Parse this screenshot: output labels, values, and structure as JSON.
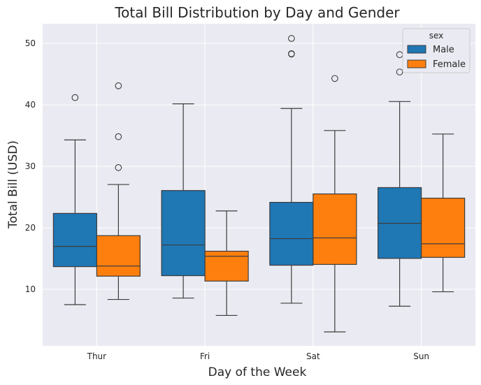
{
  "chart_data": {
    "type": "boxplot",
    "title": "Total Bill Distribution by Day and Gender",
    "xlabel": "Day of the Week",
    "ylabel": "Total Bill (USD)",
    "categories": [
      "Thur",
      "Fri",
      "Sat",
      "Sun"
    ],
    "ylim": [
      0.8,
      53.2
    ],
    "yticks": [
      10,
      20,
      30,
      40,
      50
    ],
    "grid": true,
    "legend": {
      "title": "sex",
      "placement": "top-right"
    },
    "series": [
      {
        "name": "Male",
        "color": "#1f77b4",
        "boxes": [
          {
            "category": "Thur",
            "whisker_low": 7.51,
            "q1": 13.69,
            "median": 16.98,
            "q3": 22.35,
            "whisker_high": 34.3,
            "outliers": [
              41.19
            ]
          },
          {
            "category": "Fri",
            "whisker_low": 8.58,
            "q1": 12.22,
            "median": 17.22,
            "q3": 26.07,
            "whisker_high": 40.17,
            "outliers": []
          },
          {
            "category": "Sat",
            "whisker_low": 7.74,
            "q1": 13.92,
            "median": 18.24,
            "q3": 24.15,
            "whisker_high": 39.42,
            "outliers": [
              48.33,
              48.27,
              50.81
            ]
          },
          {
            "category": "Sun",
            "whisker_low": 7.25,
            "q1": 15.03,
            "median": 20.73,
            "q3": 26.55,
            "whisker_high": 40.55,
            "outliers": [
              45.35,
              48.17
            ]
          }
        ]
      },
      {
        "name": "Female",
        "color": "#ff7f0e",
        "boxes": [
          {
            "category": "Thur",
            "whisker_low": 8.35,
            "q1": 12.14,
            "median": 13.79,
            "q3": 18.73,
            "whisker_high": 27.05,
            "outliers": [
              29.8,
              34.83,
              43.11
            ]
          },
          {
            "category": "Fri",
            "whisker_low": 5.75,
            "q1": 11.34,
            "median": 15.38,
            "q3": 16.2,
            "whisker_high": 22.75,
            "outliers": []
          },
          {
            "category": "Sat",
            "whisker_low": 3.07,
            "q1": 14.05,
            "median": 18.36,
            "q3": 25.52,
            "whisker_high": 35.83,
            "outliers": [
              44.3
            ]
          },
          {
            "category": "Sun",
            "whisker_low": 9.6,
            "q1": 15.2,
            "median": 17.41,
            "q3": 24.83,
            "whisker_high": 35.26,
            "outliers": []
          }
        ]
      }
    ]
  }
}
